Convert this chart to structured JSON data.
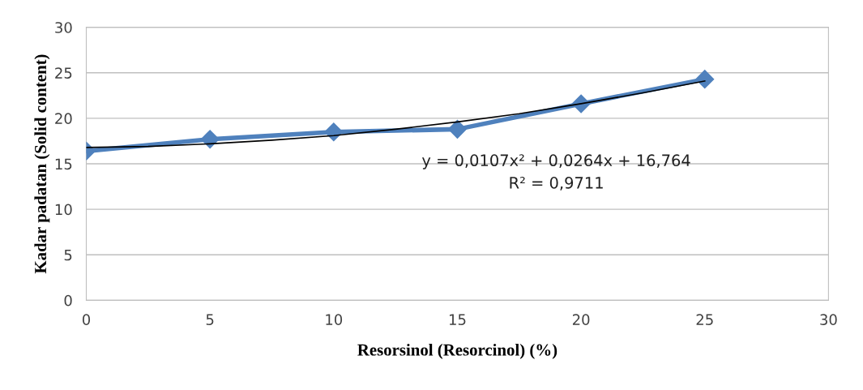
{
  "chart_data": {
    "type": "line",
    "xlabel": "Resorsinol (Resorcinol) (%)",
    "ylabel": "Kadar padatan (Solid content)",
    "annotations": [
      "y = 0,0107x² + 0,0264x + 16,764\nR² = 0,9711"
    ],
    "x": [
      0,
      5,
      10,
      15,
      20,
      25
    ],
    "series": [
      {
        "color": "#4f81bd",
        "values": [
          16.4,
          17.7,
          18.5,
          18.8,
          21.6,
          24.3
        ],
        "marker": "diamond"
      },
      {
        "type": "line",
        "color": "#000000",
        "x": [
          0,
          2.5,
          5,
          7.5,
          10,
          12.5,
          15,
          17.5,
          20,
          22.5,
          25
        ],
        "values": [
          16.8,
          16.9,
          17.2,
          17.6,
          18.1,
          18.8,
          19.6,
          20.5,
          21.6,
          22.8,
          24.1
        ],
        "marker": "none"
      }
    ],
    "xlim": [
      0,
      30
    ],
    "xticks": [
      0,
      5,
      10,
      15,
      20,
      25,
      30
    ],
    "ylim": [
      0,
      30
    ],
    "yticks": [
      0,
      5,
      10,
      15,
      20,
      25,
      30
    ],
    "grid": "y",
    "legend": false
  }
}
